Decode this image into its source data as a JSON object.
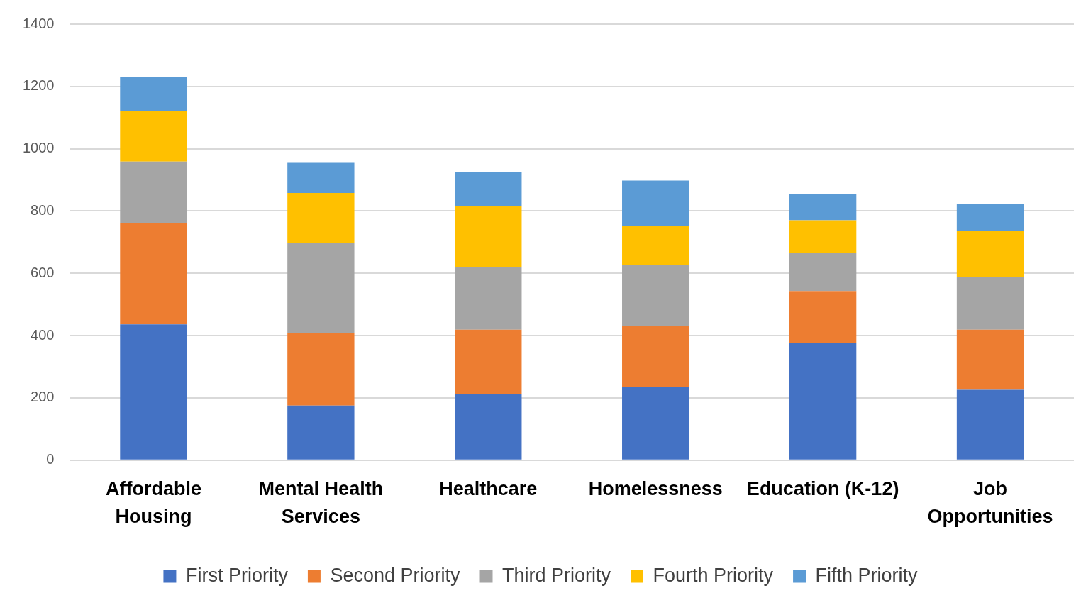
{
  "chart_data": {
    "type": "bar",
    "stacked": true,
    "categories": [
      "Affordable Housing",
      "Mental Health Services",
      "Healthcare",
      "Homelessness",
      "Education (K-12)",
      "Job Opportunities"
    ],
    "series": [
      {
        "name": "First Priority",
        "color": "#4472c4",
        "values": [
          436,
          175,
          211,
          236,
          375,
          226
        ]
      },
      {
        "name": "Second Priority",
        "color": "#ed7d31",
        "values": [
          325,
          234,
          208,
          196,
          168,
          193
        ]
      },
      {
        "name": "Third Priority",
        "color": "#a5a5a5",
        "values": [
          198,
          289,
          200,
          194,
          123,
          170
        ]
      },
      {
        "name": "Fourth Priority",
        "color": "#ffc000",
        "values": [
          161,
          160,
          198,
          127,
          104,
          147
        ]
      },
      {
        "name": "Fifth Priority",
        "color": "#5b9bd5",
        "values": [
          111,
          97,
          107,
          145,
          85,
          87
        ]
      }
    ],
    "ylim": [
      0,
      1400
    ],
    "yticks": [
      0,
      200,
      400,
      600,
      800,
      1000,
      1200,
      1400
    ],
    "grid": "y",
    "legend": "bottom"
  }
}
